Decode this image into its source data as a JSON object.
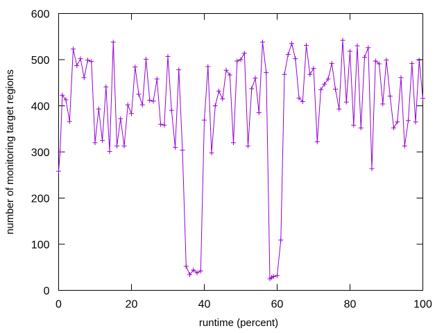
{
  "chart_data": {
    "type": "line",
    "xlabel": "runtime (percent)",
    "ylabel": "number of monitoring target regions",
    "xlim": [
      0,
      100
    ],
    "ylim": [
      0,
      600
    ],
    "xticks": [
      0,
      20,
      40,
      60,
      80,
      100
    ],
    "yticks": [
      0,
      100,
      200,
      300,
      400,
      500,
      600
    ],
    "grid": false,
    "marker": "plus",
    "color": "#9400d3",
    "series": [
      {
        "x": [
          0,
          0.4,
          1,
          2,
          3,
          4,
          5,
          6,
          7,
          8,
          9,
          10,
          11,
          12,
          13,
          14,
          15,
          16,
          17,
          18,
          19,
          20,
          21,
          22,
          23,
          24,
          25,
          26,
          27,
          28,
          29,
          30,
          31,
          32,
          33,
          34,
          35,
          36,
          37,
          38,
          39,
          40,
          41,
          42,
          43,
          44,
          45,
          46,
          47,
          48,
          49,
          50,
          51,
          52,
          53,
          54,
          55,
          56,
          57,
          58,
          58.5,
          59,
          60,
          61,
          62,
          63,
          64,
          65,
          66,
          67,
          68,
          69,
          70,
          71,
          72,
          73,
          74,
          75,
          76,
          77,
          78,
          79,
          80,
          81,
          82,
          83,
          84,
          85,
          86,
          87,
          88,
          89,
          90,
          91,
          92,
          93,
          94,
          95,
          96,
          97,
          98,
          99,
          100
        ],
        "values": [
          258,
          300,
          423,
          413,
          366,
          523,
          487,
          502,
          461,
          499,
          496,
          320,
          393,
          325,
          441,
          301,
          538,
          313,
          372,
          313,
          402,
          383,
          484,
          425,
          402,
          501,
          412,
          410,
          458,
          360,
          358,
          507,
          390,
          310,
          478,
          304,
          52,
          34,
          44,
          38,
          42,
          369,
          485,
          298,
          400,
          432,
          415,
          477,
          467,
          320,
          497,
          500,
          514,
          313,
          437,
          460,
          385,
          538,
          472,
          25,
          28,
          30,
          32,
          109,
          468,
          511,
          535,
          502,
          417,
          409,
          531,
          468,
          481,
          322,
          435,
          447,
          458,
          492,
          436,
          393,
          542,
          408,
          518,
          358,
          530,
          352,
          505,
          526,
          264,
          497,
          491,
          404,
          499,
          421,
          352,
          365,
          461,
          313,
          368,
          492,
          365,
          499,
          416
        ]
      }
    ]
  }
}
